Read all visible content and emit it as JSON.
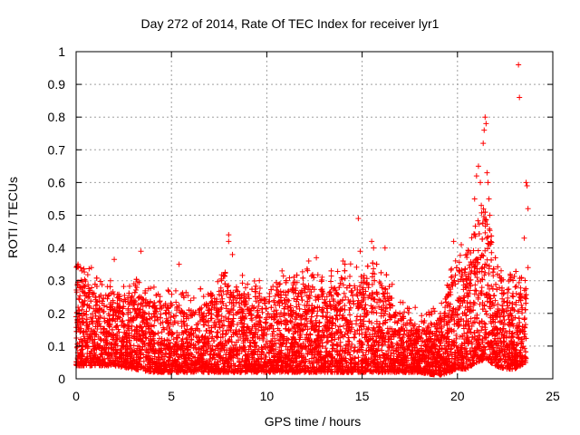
{
  "chart_data": {
    "type": "scatter",
    "title": "Day 272 of 2014, Rate Of TEC Index for receiver lyr1",
    "xlabel": "GPS time / hours",
    "ylabel": "ROTI / TECUs",
    "xlim": [
      0,
      25
    ],
    "ylim": [
      0,
      1
    ],
    "xticks": [
      0,
      5,
      10,
      15,
      20,
      25
    ],
    "yticks": [
      0,
      0.1,
      0.2,
      0.3,
      0.4,
      0.5,
      0.6,
      0.7,
      0.8,
      0.9,
      1
    ],
    "grid": true,
    "marker": "+",
    "color": "#ff0000",
    "envelope": [
      {
        "x": 0.0,
        "lo": 0.04,
        "hi": 0.3
      },
      {
        "x": 0.5,
        "lo": 0.04,
        "hi": 0.31
      },
      {
        "x": 1.0,
        "lo": 0.04,
        "hi": 0.26
      },
      {
        "x": 2.0,
        "lo": 0.04,
        "hi": 0.27
      },
      {
        "x": 3.0,
        "lo": 0.03,
        "hi": 0.26
      },
      {
        "x": 4.0,
        "lo": 0.02,
        "hi": 0.24
      },
      {
        "x": 5.0,
        "lo": 0.02,
        "hi": 0.23
      },
      {
        "x": 6.0,
        "lo": 0.02,
        "hi": 0.21
      },
      {
        "x": 7.0,
        "lo": 0.02,
        "hi": 0.24
      },
      {
        "x": 8.0,
        "lo": 0.02,
        "hi": 0.29
      },
      {
        "x": 9.0,
        "lo": 0.02,
        "hi": 0.26
      },
      {
        "x": 10.0,
        "lo": 0.02,
        "hi": 0.25
      },
      {
        "x": 11.0,
        "lo": 0.02,
        "hi": 0.27
      },
      {
        "x": 12.0,
        "lo": 0.02,
        "hi": 0.29
      },
      {
        "x": 13.0,
        "lo": 0.02,
        "hi": 0.27
      },
      {
        "x": 14.0,
        "lo": 0.02,
        "hi": 0.3
      },
      {
        "x": 15.0,
        "lo": 0.02,
        "hi": 0.32
      },
      {
        "x": 16.0,
        "lo": 0.02,
        "hi": 0.3
      },
      {
        "x": 17.0,
        "lo": 0.02,
        "hi": 0.2
      },
      {
        "x": 18.0,
        "lo": 0.02,
        "hi": 0.16
      },
      {
        "x": 19.0,
        "lo": 0.01,
        "hi": 0.18
      },
      {
        "x": 19.6,
        "lo": 0.02,
        "hi": 0.28
      },
      {
        "x": 20.0,
        "lo": 0.03,
        "hi": 0.33
      },
      {
        "x": 20.5,
        "lo": 0.03,
        "hi": 0.34
      },
      {
        "x": 21.0,
        "lo": 0.05,
        "hi": 0.45
      },
      {
        "x": 21.5,
        "lo": 0.06,
        "hi": 0.48
      },
      {
        "x": 22.0,
        "lo": 0.04,
        "hi": 0.32
      },
      {
        "x": 22.5,
        "lo": 0.03,
        "hi": 0.26
      },
      {
        "x": 23.0,
        "lo": 0.03,
        "hi": 0.28
      },
      {
        "x": 23.6,
        "lo": 0.05,
        "hi": 0.3
      }
    ],
    "outliers": [
      {
        "x": 0.1,
        "y": 0.35
      },
      {
        "x": 0.3,
        "y": 0.33
      },
      {
        "x": 0.8,
        "y": 0.34
      },
      {
        "x": 2.0,
        "y": 0.365
      },
      {
        "x": 3.4,
        "y": 0.39
      },
      {
        "x": 5.4,
        "y": 0.35
      },
      {
        "x": 8.0,
        "y": 0.44
      },
      {
        "x": 8.0,
        "y": 0.42
      },
      {
        "x": 8.2,
        "y": 0.38
      },
      {
        "x": 10.8,
        "y": 0.33
      },
      {
        "x": 12.2,
        "y": 0.36
      },
      {
        "x": 12.6,
        "y": 0.37
      },
      {
        "x": 14.0,
        "y": 0.36
      },
      {
        "x": 14.8,
        "y": 0.49
      },
      {
        "x": 14.9,
        "y": 0.39
      },
      {
        "x": 15.5,
        "y": 0.42
      },
      {
        "x": 15.6,
        "y": 0.4
      },
      {
        "x": 16.2,
        "y": 0.4
      },
      {
        "x": 19.8,
        "y": 0.42
      },
      {
        "x": 20.2,
        "y": 0.41
      },
      {
        "x": 20.5,
        "y": 0.38
      },
      {
        "x": 20.9,
        "y": 0.55
      },
      {
        "x": 21.0,
        "y": 0.62
      },
      {
        "x": 21.1,
        "y": 0.65
      },
      {
        "x": 21.2,
        "y": 0.6
      },
      {
        "x": 21.25,
        "y": 0.53
      },
      {
        "x": 21.35,
        "y": 0.72
      },
      {
        "x": 21.4,
        "y": 0.76
      },
      {
        "x": 21.45,
        "y": 0.8
      },
      {
        "x": 21.5,
        "y": 0.78
      },
      {
        "x": 21.55,
        "y": 0.63
      },
      {
        "x": 21.6,
        "y": 0.6
      },
      {
        "x": 21.65,
        "y": 0.55
      },
      {
        "x": 21.7,
        "y": 0.5
      },
      {
        "x": 23.2,
        "y": 0.96
      },
      {
        "x": 23.25,
        "y": 0.86
      },
      {
        "x": 23.5,
        "y": 0.43
      },
      {
        "x": 23.6,
        "y": 0.6
      },
      {
        "x": 23.65,
        "y": 0.59
      },
      {
        "x": 23.7,
        "y": 0.52
      },
      {
        "x": 23.7,
        "y": 0.34
      }
    ]
  }
}
